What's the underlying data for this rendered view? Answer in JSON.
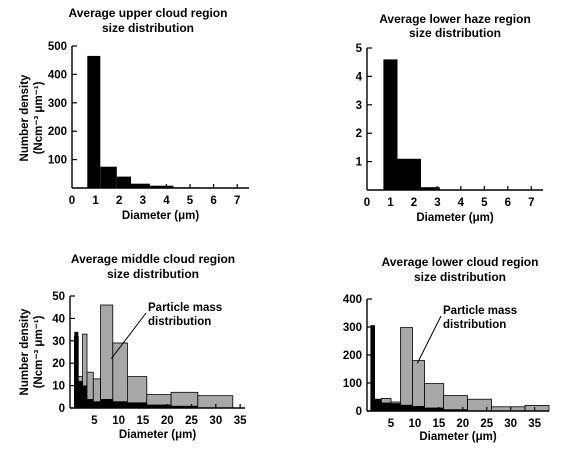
{
  "chart_data": [
    {
      "type": "bar",
      "title_lines": [
        "Average upper cloud region",
        "size distribution"
      ],
      "xlabel": "Diameter (μm)",
      "ylabel_lines": [
        "Number density",
        "(Ncm⁻³ μm⁻¹)"
      ],
      "xlim": [
        0,
        7.5
      ],
      "ylim": [
        0,
        500
      ],
      "x_ticks": [
        0,
        1,
        2,
        3,
        4,
        5,
        6,
        7
      ],
      "y_ticks": [
        100,
        200,
        300,
        400,
        500
      ],
      "series": [
        {
          "fill": "black",
          "bins": [
            {
              "x0": 0.65,
              "x1": 1.2,
              "value": 465
            },
            {
              "x0": 1.2,
              "x1": 1.9,
              "value": 75
            },
            {
              "x0": 1.9,
              "x1": 2.5,
              "value": 40
            },
            {
              "x0": 2.5,
              "x1": 3.3,
              "value": 15
            },
            {
              "x0": 3.3,
              "x1": 4.3,
              "value": 8
            },
            {
              "x0": 4.3,
              "x1": 5.5,
              "value": 2
            }
          ]
        }
      ],
      "annotation": null
    },
    {
      "type": "bar",
      "title_lines": [
        "Average lower haze region",
        "size distribution"
      ],
      "xlabel": "Diameter (μm)",
      "ylabel_lines": [],
      "xlim": [
        0,
        7.5
      ],
      "ylim": [
        0,
        5
      ],
      "x_ticks": [
        0,
        1,
        2,
        3,
        4,
        5,
        6,
        7
      ],
      "y_ticks": [
        1,
        2,
        3,
        4,
        5
      ],
      "series": [
        {
          "fill": "black",
          "bins": [
            {
              "x0": 0.7,
              "x1": 1.3,
              "value": 4.6
            },
            {
              "x0": 1.3,
              "x1": 2.3,
              "value": 1.1
            },
            {
              "x0": 2.3,
              "x1": 3.1,
              "value": 0.1
            }
          ]
        }
      ],
      "annotation": null
    },
    {
      "type": "bar",
      "title_lines": [
        "Average middle cloud region",
        "size distribution"
      ],
      "xlabel": "Diameter (μm)",
      "ylabel_lines": [
        "Number density",
        "(Ncm⁻³ μm⁻¹)"
      ],
      "xlim": [
        0,
        36
      ],
      "ylim": [
        0,
        50
      ],
      "x_ticks": [
        5,
        10,
        15,
        20,
        25,
        30,
        35
      ],
      "y_ticks": [
        0,
        10,
        20,
        30,
        40,
        50
      ],
      "series": [
        {
          "fill": "gray",
          "bins": [
            {
              "x0": 0.9,
              "x1": 1.7,
              "value": 32
            },
            {
              "x0": 1.7,
              "x1": 2.6,
              "value": 14
            },
            {
              "x0": 2.6,
              "x1": 3.5,
              "value": 33
            },
            {
              "x0": 3.5,
              "x1": 4.8,
              "value": 16
            },
            {
              "x0": 4.8,
              "x1": 6.3,
              "value": 13
            },
            {
              "x0": 6.3,
              "x1": 8.8,
              "value": 46
            },
            {
              "x0": 8.8,
              "x1": 11.8,
              "value": 29
            },
            {
              "x0": 11.8,
              "x1": 15.8,
              "value": 14
            },
            {
              "x0": 15.8,
              "x1": 20.8,
              "value": 6
            },
            {
              "x0": 20.8,
              "x1": 26.3,
              "value": 7
            },
            {
              "x0": 26.3,
              "x1": 33.5,
              "value": 5.5
            }
          ]
        },
        {
          "fill": "black",
          "bins": [
            {
              "x0": 0.9,
              "x1": 1.7,
              "value": 34
            },
            {
              "x0": 1.7,
              "x1": 2.6,
              "value": 12
            },
            {
              "x0": 2.6,
              "x1": 3.5,
              "value": 10
            },
            {
              "x0": 3.5,
              "x1": 4.8,
              "value": 4
            },
            {
              "x0": 4.8,
              "x1": 6.3,
              "value": 3
            },
            {
              "x0": 6.3,
              "x1": 8.8,
              "value": 4
            },
            {
              "x0": 8.8,
              "x1": 11.8,
              "value": 3
            },
            {
              "x0": 11.8,
              "x1": 15.8,
              "value": 2.5
            },
            {
              "x0": 15.8,
              "x1": 20.8,
              "value": 1.5
            },
            {
              "x0": 20.8,
              "x1": 26.3,
              "value": 1
            }
          ]
        }
      ],
      "annotation": {
        "lines": [
          "Particle mass",
          "distribution"
        ],
        "target_x": 8.5,
        "target_y": 22
      }
    },
    {
      "type": "bar",
      "title_lines": [
        "Average lower cloud region",
        "size distribution"
      ],
      "xlabel": "Diameter (μm)",
      "ylabel_lines": [],
      "xlim": [
        0,
        38
      ],
      "ylim": [
        0,
        400
      ],
      "x_ticks": [
        5,
        10,
        15,
        20,
        25,
        30,
        35
      ],
      "y_ticks": [
        0,
        100,
        200,
        300,
        400
      ],
      "series": [
        {
          "fill": "gray",
          "bins": [
            {
              "x0": 0.8,
              "x1": 1.6,
              "value": 305
            },
            {
              "x0": 1.6,
              "x1": 3.0,
              "value": 42
            },
            {
              "x0": 3.0,
              "x1": 5.0,
              "value": 45
            },
            {
              "x0": 5.0,
              "x1": 7.0,
              "value": 32
            },
            {
              "x0": 7.0,
              "x1": 9.5,
              "value": 298
            },
            {
              "x0": 9.5,
              "x1": 12.0,
              "value": 180
            },
            {
              "x0": 12.0,
              "x1": 16.0,
              "value": 98
            },
            {
              "x0": 16.0,
              "x1": 21.0,
              "value": 55
            },
            {
              "x0": 21.0,
              "x1": 26.0,
              "value": 42
            },
            {
              "x0": 26.0,
              "x1": 33.0,
              "value": 15
            },
            {
              "x0": 33.0,
              "x1": 38.0,
              "value": 20
            }
          ]
        },
        {
          "fill": "black",
          "bins": [
            {
              "x0": 0.8,
              "x1": 1.6,
              "value": 305
            },
            {
              "x0": 1.6,
              "x1": 3.0,
              "value": 42
            },
            {
              "x0": 3.0,
              "x1": 5.0,
              "value": 30
            },
            {
              "x0": 5.0,
              "x1": 7.0,
              "value": 28
            },
            {
              "x0": 7.0,
              "x1": 9.5,
              "value": 22
            },
            {
              "x0": 9.5,
              "x1": 12.0,
              "value": 18
            },
            {
              "x0": 12.0,
              "x1": 16.0,
              "value": 12
            },
            {
              "x0": 16.0,
              "x1": 21.0,
              "value": 6
            }
          ]
        }
      ],
      "annotation": {
        "lines": [
          "Particle mass",
          "distribution"
        ],
        "target_x": 10.5,
        "target_y": 170
      }
    }
  ],
  "colors": {
    "bar_black": "#000000",
    "bar_gray": "#a8a8a8",
    "axis": "#000000",
    "background": "#ffffff"
  }
}
